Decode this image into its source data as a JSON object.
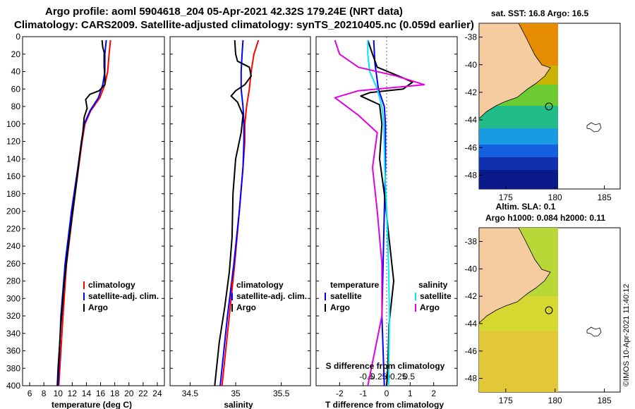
{
  "title": {
    "line1": "Argo profile: aoml 5904618_204 05-Apr-2021 42.32S 179.24E (NRT data)",
    "line2": "Climatology: CARS2009. Satellite-adjusted climatology: synTS_20210405.nc (0.059d earlier)"
  },
  "colors": {
    "climatology": "#ff0000",
    "satellite": "#0000ff",
    "argo": "#000000",
    "sal_satellite": "#00e5ff",
    "sal_argo": "#e000e0"
  },
  "depth_ticks": [
    0,
    20,
    40,
    60,
    80,
    100,
    120,
    140,
    160,
    180,
    200,
    220,
    240,
    260,
    280,
    300,
    320,
    340,
    360,
    380,
    400
  ],
  "chart_data": [
    {
      "type": "line",
      "name": "temperature",
      "xlabel": "temperature (deg C)",
      "ylabel": "depth",
      "xlim": [
        5,
        25
      ],
      "ylim": [
        400,
        0
      ],
      "xticks": [
        6,
        8,
        10,
        12,
        14,
        16,
        18,
        20,
        22,
        24
      ],
      "legend": [
        "climatology",
        "satellite-adj. clim.",
        "Argo"
      ],
      "series": [
        {
          "name": "climatology",
          "color": "#ff0000",
          "points": [
            [
              17.4,
              4
            ],
            [
              17.2,
              20
            ],
            [
              17.0,
              40
            ],
            [
              16.6,
              55
            ],
            [
              15.9,
              70
            ],
            [
              14.6,
              85
            ],
            [
              13.8,
              100
            ],
            [
              13.4,
              120
            ],
            [
              12.9,
              150
            ],
            [
              12.1,
              200
            ],
            [
              11.2,
              260
            ],
            [
              10.7,
              320
            ],
            [
              10.1,
              400
            ]
          ]
        },
        {
          "name": "satellite-adj. clim.",
          "color": "#0000ff",
          "points": [
            [
              16.8,
              4
            ],
            [
              16.6,
              20
            ],
            [
              16.6,
              40
            ],
            [
              16.3,
              55
            ],
            [
              15.7,
              70
            ],
            [
              14.5,
              85
            ],
            [
              13.7,
              100
            ],
            [
              13.3,
              120
            ],
            [
              12.8,
              150
            ],
            [
              11.9,
              200
            ],
            [
              11.0,
              260
            ],
            [
              10.4,
              320
            ],
            [
              10.0,
              400
            ]
          ]
        },
        {
          "name": "Argo",
          "color": "#000000",
          "points": [
            [
              16.2,
              4
            ],
            [
              16.3,
              12
            ],
            [
              16.5,
              18
            ],
            [
              16.5,
              35
            ],
            [
              16.6,
              45
            ],
            [
              16.6,
              55
            ],
            [
              15.8,
              62
            ],
            [
              14.5,
              66
            ],
            [
              13.9,
              72
            ],
            [
              14.1,
              82
            ],
            [
              13.7,
              92
            ],
            [
              13.5,
              110
            ],
            [
              13.0,
              140
            ],
            [
              12.4,
              180
            ],
            [
              11.6,
              230
            ],
            [
              10.9,
              280
            ],
            [
              10.4,
              330
            ],
            [
              10.0,
              380
            ],
            [
              9.9,
              400
            ]
          ]
        }
      ]
    },
    {
      "type": "line",
      "name": "salinity",
      "xlabel": "salinity",
      "ylabel": "depth",
      "xlim": [
        34.28,
        35.82
      ],
      "ylim": [
        400,
        0
      ],
      "xticks": [
        34.5,
        35,
        35.5
      ],
      "legend": [
        "climatology",
        "satellite-adj. clim.",
        "Argo"
      ],
      "series": [
        {
          "name": "climatology",
          "color": "#ff0000",
          "points": [
            [
              35.25,
              4
            ],
            [
              35.2,
              20
            ],
            [
              35.17,
              40
            ],
            [
              35.15,
              60
            ],
            [
              35.12,
              80
            ],
            [
              35.1,
              100
            ],
            [
              35.1,
              120
            ],
            [
              35.08,
              150
            ],
            [
              35.04,
              200
            ],
            [
              34.99,
              260
            ],
            [
              34.93,
              320
            ],
            [
              34.85,
              400
            ]
          ]
        },
        {
          "name": "satellite-adj. clim.",
          "color": "#0000ff",
          "points": [
            [
              35.08,
              4
            ],
            [
              35.07,
              20
            ],
            [
              35.06,
              40
            ],
            [
              35.06,
              60
            ],
            [
              35.08,
              80
            ],
            [
              35.09,
              100
            ],
            [
              35.09,
              120
            ],
            [
              35.08,
              150
            ],
            [
              35.04,
              200
            ],
            [
              34.98,
              260
            ],
            [
              34.91,
              320
            ],
            [
              34.83,
              400
            ]
          ]
        },
        {
          "name": "Argo",
          "color": "#000000",
          "points": [
            [
              34.99,
              4
            ],
            [
              35.0,
              20
            ],
            [
              35.02,
              28
            ],
            [
              35.15,
              35
            ],
            [
              35.17,
              45
            ],
            [
              35.1,
              55
            ],
            [
              35.0,
              62
            ],
            [
              34.95,
              68
            ],
            [
              35.02,
              75
            ],
            [
              35.08,
              90
            ],
            [
              35.06,
              110
            ],
            [
              35.0,
              140
            ],
            [
              34.97,
              180
            ],
            [
              34.96,
              230
            ],
            [
              34.93,
              270
            ],
            [
              34.88,
              310
            ],
            [
              34.82,
              350
            ],
            [
              34.78,
              390
            ],
            [
              34.77,
              400
            ]
          ]
        }
      ]
    },
    {
      "type": "line",
      "name": "difference",
      "xlabel": "T difference from climatology",
      "x2label": "S difference from climatology",
      "ylabel": "depth",
      "xlim": [
        -3,
        3
      ],
      "ylim": [
        400,
        0
      ],
      "xticks": [
        -2,
        -1,
        0,
        1,
        2
      ],
      "x2ticks": [
        -0.5,
        -0.25,
        0,
        0.25,
        0.5
      ],
      "legend_groups": {
        "temperature": [
          "satellite",
          "Argo"
        ],
        "salinity": [
          "satellite",
          "Argo"
        ]
      },
      "series": [
        {
          "name": "temperature satellite",
          "color": "#0000ff",
          "points": [
            [
              -0.55,
              4
            ],
            [
              -0.5,
              30
            ],
            [
              -0.35,
              60
            ],
            [
              -0.1,
              80
            ],
            [
              -0.05,
              100
            ],
            [
              -0.05,
              150
            ],
            [
              -0.1,
              200
            ],
            [
              -0.15,
              260
            ],
            [
              -0.2,
              320
            ],
            [
              -0.1,
              400
            ]
          ]
        },
        {
          "name": "temperature Argo",
          "color": "#000000",
          "points": [
            [
              -0.8,
              4
            ],
            [
              -0.6,
              20
            ],
            [
              -0.4,
              35
            ],
            [
              0.5,
              45
            ],
            [
              1.1,
              52
            ],
            [
              0.7,
              60
            ],
            [
              -0.7,
              64
            ],
            [
              -1.1,
              68
            ],
            [
              -0.3,
              78
            ],
            [
              -0.2,
              100
            ],
            [
              -0.3,
              140
            ],
            [
              -0.1,
              180
            ],
            [
              0.1,
              230
            ],
            [
              0.3,
              280
            ],
            [
              0.1,
              330
            ],
            [
              0.05,
              380
            ],
            [
              0.0,
              400
            ]
          ]
        },
        {
          "name": "salinity satellite",
          "color": "#00e5ff",
          "points": [
            [
              -0.2,
              4
            ],
            [
              -0.2,
              20
            ],
            [
              -0.18,
              40
            ],
            [
              -0.1,
              60
            ],
            [
              -0.05,
              80
            ],
            [
              -0.03,
              100
            ],
            [
              -0.02,
              150
            ],
            [
              0.0,
              200
            ],
            [
              0.02,
              260
            ],
            [
              0.03,
              320
            ],
            [
              0.02,
              400
            ]
          ]
        },
        {
          "name": "salinity Argo",
          "color": "#e000e0",
          "points": [
            [
              -0.55,
              4
            ],
            [
              -0.5,
              20
            ],
            [
              -0.3,
              35
            ],
            [
              0.1,
              45
            ],
            [
              0.4,
              55
            ],
            [
              -0.3,
              62
            ],
            [
              -0.55,
              70
            ],
            [
              -0.3,
              90
            ],
            [
              -0.1,
              110
            ],
            [
              -0.15,
              150
            ],
            [
              -0.1,
              200
            ],
            [
              -0.05,
              260
            ],
            [
              -0.05,
              320
            ],
            [
              -0.2,
              400
            ]
          ]
        }
      ]
    }
  ],
  "maps": [
    {
      "title": "sat. SST: 16.8 Argo: 16.5",
      "lat_ticks": [
        -38,
        -40,
        -42,
        -44,
        -46,
        -48
      ],
      "lon_ticks": [
        175,
        180,
        185
      ]
    },
    {
      "title_line1": "Altim. SLA: 0.1",
      "title_line2": "Argo h1000: 0.084 h2000: 0.11",
      "lat_ticks": [
        -38,
        -40,
        -42,
        -44,
        -46,
        -48
      ],
      "lon_ticks": [
        175,
        180,
        185
      ]
    }
  ],
  "stamp": "©IMOS 10-Apr-2021 11:40:12",
  "legend_headers": {
    "temperature": "temperature",
    "salinity": "salinity"
  }
}
